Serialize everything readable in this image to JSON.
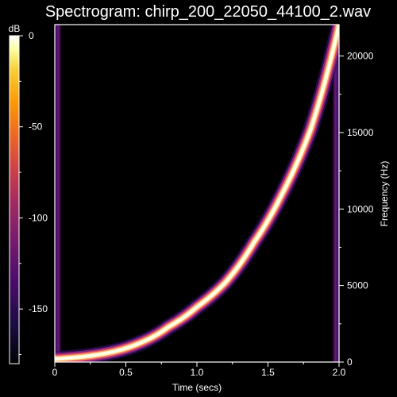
{
  "chart_data": {
    "type": "heatmap",
    "title": "Spectrogram: chirp_200_22050_44100_2.wav",
    "xlabel": "Time (secs)",
    "ylabel": "Frequency (Hz)",
    "colorbar_label": "dB",
    "xlim": [
      0,
      2.0
    ],
    "ylim": [
      0,
      22050
    ],
    "x_ticks": [
      {
        "value": 0,
        "label": "0"
      },
      {
        "value": 0.5,
        "label": "0.5"
      },
      {
        "value": 1.0,
        "label": "1.0"
      },
      {
        "value": 1.5,
        "label": "1.5"
      },
      {
        "value": 2.0,
        "label": "2.0"
      }
    ],
    "y_ticks": [
      {
        "value": 0,
        "label": "0"
      },
      {
        "value": 5000,
        "label": "5000"
      },
      {
        "value": 10000,
        "label": "10000"
      },
      {
        "value": 15000,
        "label": "15000"
      },
      {
        "value": 20000,
        "label": "20000"
      }
    ],
    "colorbar_range": [
      -180,
      0
    ],
    "colorbar_ticks": [
      {
        "value": 0,
        "label": "0"
      },
      {
        "value": -50,
        "label": "-50"
      },
      {
        "value": -100,
        "label": "-100"
      },
      {
        "value": -150,
        "label": "-150"
      }
    ],
    "chirp": {
      "start_hz": 200,
      "end_hz": 22050,
      "duration_secs": 2.0,
      "curve_points": [
        [
          0.0,
          200
        ],
        [
          0.2,
          350
        ],
        [
          0.4,
          650
        ],
        [
          0.6,
          1250
        ],
        [
          0.8,
          2300
        ],
        [
          1.0,
          3600
        ],
        [
          1.2,
          5200
        ],
        [
          1.4,
          7800
        ],
        [
          1.6,
          11000
        ],
        [
          1.8,
          15200
        ],
        [
          2.0,
          22050
        ]
      ]
    },
    "colormap": "inferno/magma",
    "colormap_stops": [
      "#000004",
      "#1b0c41",
      "#4a0c6b",
      "#781c6d",
      "#a52c60",
      "#cf4446",
      "#ed6925",
      "#fb9b06",
      "#f7d13d",
      "#fcffa4",
      "#ffffff"
    ]
  }
}
